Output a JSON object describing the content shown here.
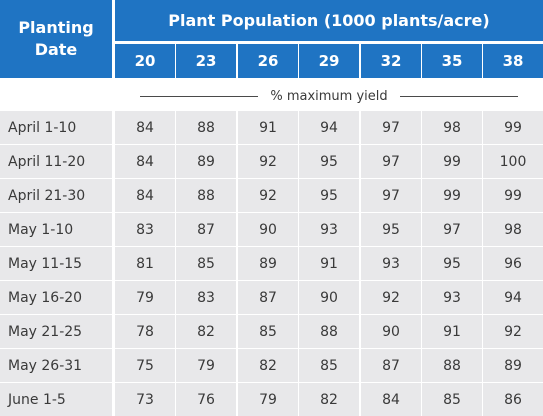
{
  "header": {
    "planting_date_line1": "Planting",
    "planting_date_line2": "Date",
    "population_title": "Plant Population (1000 plants/acre)",
    "populations": [
      "20",
      "23",
      "26",
      "29",
      "32",
      "35",
      "38"
    ]
  },
  "subheader": "% maximum yield",
  "rows": [
    {
      "date": "April 1-10",
      "values": [
        "84",
        "88",
        "91",
        "94",
        "97",
        "98",
        "99"
      ]
    },
    {
      "date": "April 11-20",
      "values": [
        "84",
        "89",
        "92",
        "95",
        "97",
        "99",
        "100"
      ]
    },
    {
      "date": "April 21-30",
      "values": [
        "84",
        "88",
        "92",
        "95",
        "97",
        "99",
        "99"
      ]
    },
    {
      "date": "May 1-10",
      "values": [
        "83",
        "87",
        "90",
        "93",
        "95",
        "97",
        "98"
      ]
    },
    {
      "date": "May 11-15",
      "values": [
        "81",
        "85",
        "89",
        "91",
        "93",
        "95",
        "96"
      ]
    },
    {
      "date": "May 16-20",
      "values": [
        "79",
        "83",
        "87",
        "90",
        "92",
        "93",
        "94"
      ]
    },
    {
      "date": "May 21-25",
      "values": [
        "78",
        "82",
        "85",
        "88",
        "90",
        "91",
        "92"
      ]
    },
    {
      "date": "May 26-31",
      "values": [
        "75",
        "79",
        "82",
        "85",
        "87",
        "88",
        "89"
      ]
    },
    {
      "date": "June 1-5",
      "values": [
        "73",
        "76",
        "79",
        "82",
        "84",
        "85",
        "86"
      ]
    }
  ],
  "colors": {
    "header_blue": "#1f74c3",
    "row_shade": "#e8e8ea",
    "text_gray": "#3a3a3a"
  }
}
